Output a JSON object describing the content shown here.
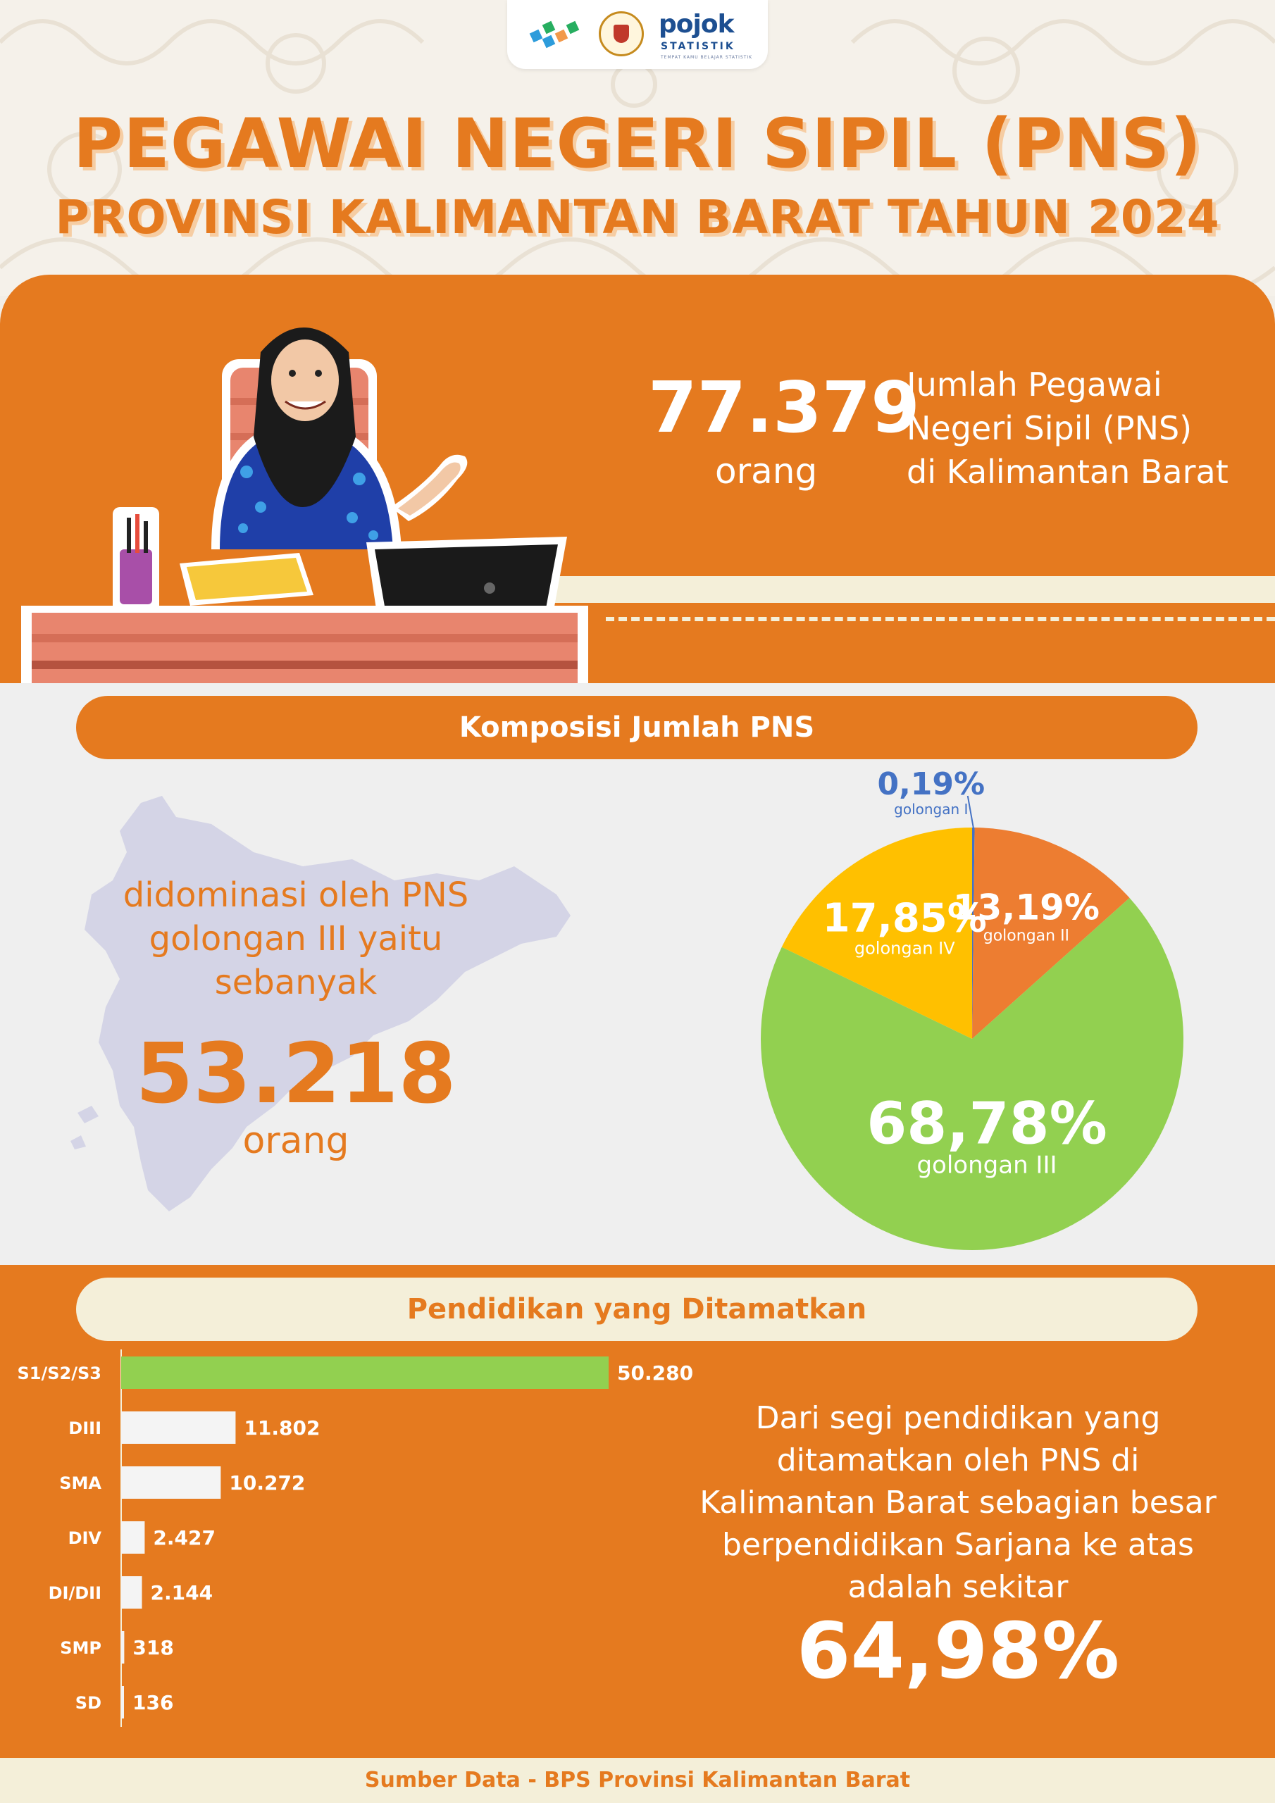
{
  "header": {
    "logo_text": "pojok",
    "logo_subtext": "STATISTIK",
    "logo_tagline": "TEMPAT KAMU BELAJAR STATISTIK",
    "title_line1": "PEGAWAI NEGERI SIPIL (PNS)",
    "title_line2": "PROVINSI KALIMANTAN BARAT TAHUN 2024"
  },
  "summary": {
    "total_value": "77.379",
    "total_unit": "orang",
    "description_lines": [
      "Jumlah Pegawai",
      "Negeri Sipil (PNS)",
      "di Kalimantan Barat"
    ]
  },
  "composition": {
    "heading": "Komposisi Jumlah PNS",
    "dominant_lines": [
      "didominasi oleh PNS",
      "golongan III yaitu",
      "sebanyak"
    ],
    "dominant_value": "53.218",
    "dominant_unit": "orang"
  },
  "education": {
    "heading": "Pendidikan yang Ditamatkan",
    "summary_lines": [
      "Dari segi pendidikan yang",
      "ditamatkan oleh PNS di",
      "Kalimantan Barat sebagian besar",
      "berpendidikan Sarjana ke atas",
      "adalah sekitar"
    ],
    "summary_value": "64,98%"
  },
  "footer": {
    "source": "Sumber Data - BPS Provinsi Kalimantan Barat"
  },
  "colors": {
    "orange": "#e57a1f",
    "cream": "#f4efd9",
    "green": "#92d050",
    "yellow": "#ffc000",
    "pie_orange": "#ed7d31",
    "blue": "#4472c4"
  },
  "chart_data": [
    {
      "type": "pie",
      "title": "",
      "slices": [
        {
          "label": "golongan I",
          "value": 0.19,
          "display": "0,19%",
          "color": "#4472c4"
        },
        {
          "label": "golongan II",
          "value": 13.19,
          "display": "13,19%",
          "color": "#ed7d31"
        },
        {
          "label": "golongan III",
          "value": 68.78,
          "display": "68,78%",
          "color": "#92d050"
        },
        {
          "label": "golongan IV",
          "value": 17.85,
          "display": "17,85%",
          "color": "#ffc000"
        }
      ]
    },
    {
      "type": "bar",
      "orientation": "horizontal",
      "title": "",
      "categories": [
        "S1/S2/S3",
        "DIII",
        "SMA",
        "DIV",
        "DI/DII",
        "SMP",
        "SD"
      ],
      "values": [
        50280,
        11802,
        10272,
        2427,
        2144,
        318,
        136
      ],
      "value_labels": [
        "50.280",
        "11.802",
        "10.272",
        "2.427",
        "2.144",
        "318",
        "136"
      ],
      "highlight_color": "#92d050",
      "bar_color": "#f4f4f4"
    }
  ]
}
